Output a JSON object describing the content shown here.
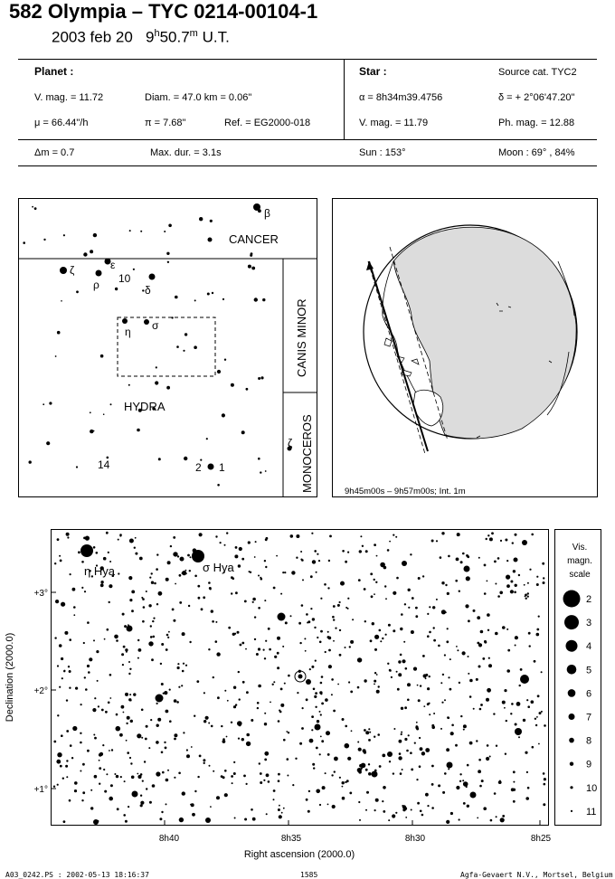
{
  "header": {
    "title": "582 Olympia  –  TYC 0214-00104-1",
    "date": "2003 feb 20",
    "time_hours": "9",
    "time_h_sup": "h",
    "time_minutes": "50.7",
    "time_m_sup": "m",
    "time_zone": "U.T."
  },
  "planet": {
    "heading": "Planet :",
    "vmag": "V. mag. = 11.72",
    "diam": "Diam. = 47.0 km = 0.06\"",
    "mu": "μ =  66.44\"/h",
    "pi": "π =  7.68\"",
    "ref": "Ref. = EG2000-018"
  },
  "star": {
    "heading": "Star :",
    "source": "Source cat.  TYC2",
    "alpha": "α =  8h34m39.4756",
    "delta": "δ = + 2°06'47.20\"",
    "vmag": "V. mag. = 11.79",
    "phmag": "Ph. mag. = 12.88"
  },
  "footer_info": {
    "dm": "Δm = 0.7",
    "maxdur": "Max. dur. = 3.1s",
    "sun": "Sun : 153°",
    "moon": "Moon :  69° , 84%"
  },
  "finder_chart": {
    "constellations": [
      "CANCER",
      "CANIS MINOR",
      "HYDRA",
      "MONOCEROS"
    ],
    "star_labels": [
      "β",
      "ζ",
      "ε",
      "ρ",
      "10",
      "δ",
      "σ",
      "η",
      "ζ",
      "14",
      "2",
      "1"
    ]
  },
  "globe": {
    "caption": "9h45m00s –  9h57m00s; Int.  1m"
  },
  "main_chart": {
    "star_labels": [
      "η Hya",
      "σ Hya"
    ],
    "dec_ticks": [
      "+3°",
      "+2°",
      "+1°"
    ],
    "ra_ticks": [
      "8h40",
      "8h35",
      "8h30",
      "8h25"
    ],
    "xlabel": "Right ascension (2000.0)",
    "ylabel": "Declination (2000.0)"
  },
  "mag_scale": {
    "title_lines": [
      "Vis.",
      "magn.",
      "scale"
    ],
    "levels": [
      "2",
      "3",
      "4",
      "5",
      "6",
      "7",
      "8",
      "9",
      "10",
      "11"
    ]
  },
  "page_footer": {
    "left": "A03_0242.PS : 2002-05-13 18:16:37",
    "center": "1585",
    "right": "Agfa-Gevaert N.V., Mortsel, Belgium"
  }
}
